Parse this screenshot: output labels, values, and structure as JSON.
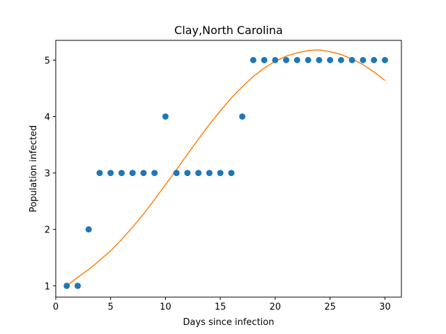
{
  "chart_data": {
    "type": "scatter",
    "title": "Clay,North Carolina",
    "xlabel": "Days since infection",
    "ylabel": "Population infected",
    "xlim": [
      0.0,
      31.5
    ],
    "ylim": [
      0.8,
      5.35
    ],
    "xticks": [
      0,
      5,
      10,
      15,
      20,
      25,
      30
    ],
    "yticks": [
      1,
      2,
      3,
      4,
      5
    ],
    "grid": false,
    "legend": "none",
    "series": [
      {
        "kind": "scatter",
        "color": "#1f77b4",
        "x": [
          1,
          2,
          3,
          4,
          5,
          6,
          7,
          8,
          9,
          10,
          11,
          12,
          13,
          14,
          15,
          16,
          17,
          18,
          19,
          20,
          21,
          22,
          23,
          24,
          25,
          26,
          27,
          28,
          29,
          30
        ],
        "y": [
          1,
          1,
          2,
          3,
          3,
          3,
          3,
          3,
          3,
          4,
          3,
          3,
          3,
          3,
          3,
          3,
          4,
          5,
          5,
          5,
          5,
          5,
          5,
          5,
          5,
          5,
          5,
          5,
          5,
          5
        ]
      },
      {
        "kind": "line",
        "color": "#ff7f0e",
        "x": [
          1,
          2,
          3,
          4,
          5,
          6,
          7,
          8,
          9,
          10,
          11,
          12,
          13,
          14,
          15,
          16,
          17,
          18,
          19,
          20,
          21,
          22,
          23,
          24,
          25,
          26,
          27,
          28,
          29,
          30
        ],
        "y": [
          1.0,
          1.15,
          1.29,
          1.45,
          1.62,
          1.82,
          2.04,
          2.27,
          2.53,
          2.79,
          3.06,
          3.33,
          3.6,
          3.86,
          4.1,
          4.33,
          4.53,
          4.71,
          4.86,
          4.98,
          5.07,
          5.13,
          5.17,
          5.18,
          5.15,
          5.1,
          5.02,
          4.92,
          4.79,
          4.64
        ]
      }
    ]
  }
}
